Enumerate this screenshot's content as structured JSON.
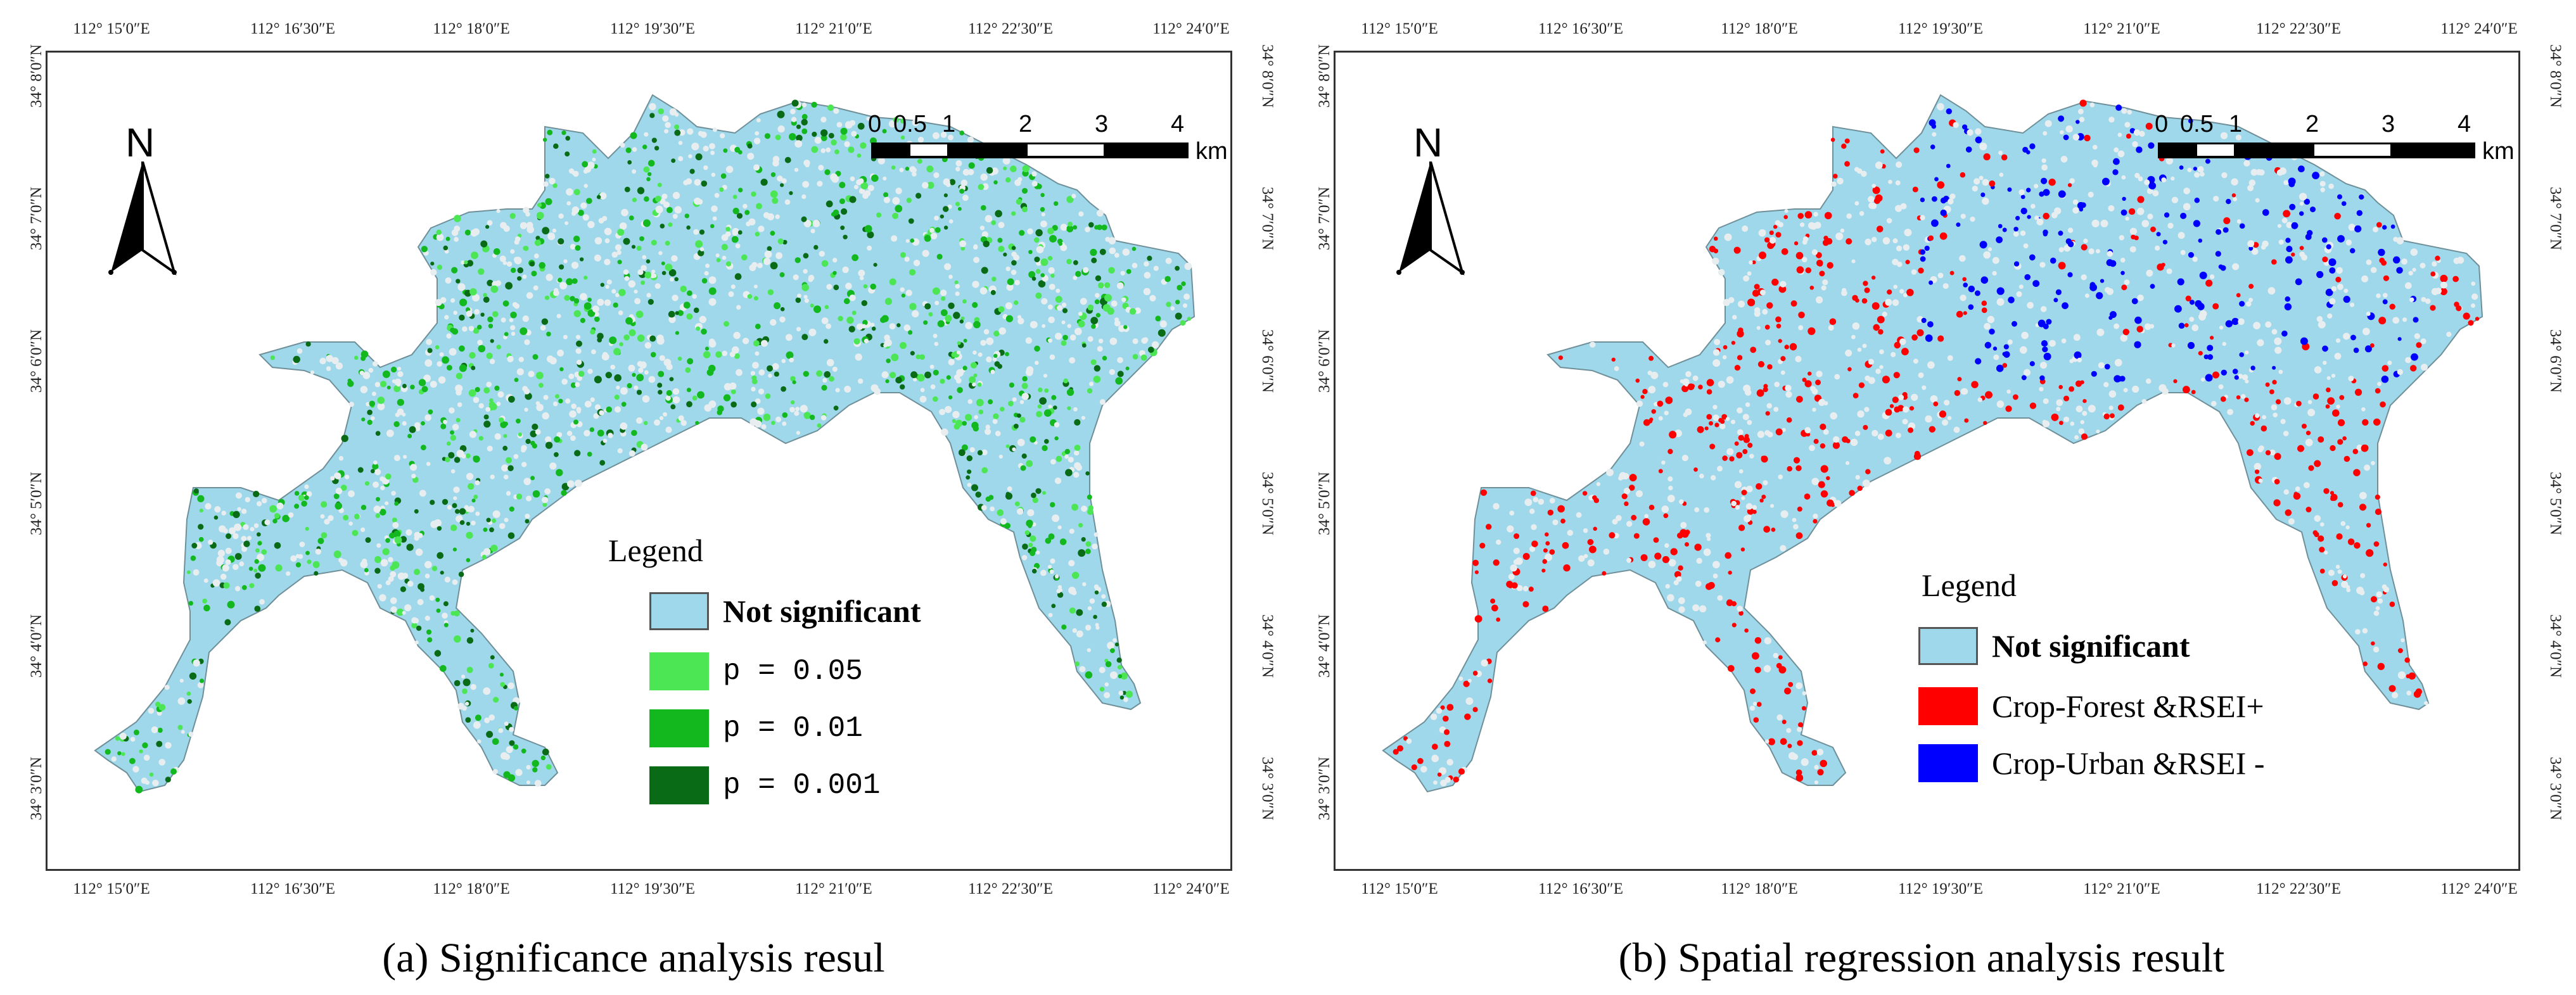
{
  "colors": {
    "not_significant": "#9ED8EA",
    "p005": "#4CE655",
    "p001": "#12B81E",
    "p0001": "#0A6B16",
    "crop_forest": "#FF0000",
    "crop_urban": "#0000FF"
  },
  "axes": {
    "lon_ticks": [
      "112° 15′0″E",
      "112° 16′30″E",
      "112° 18′0″E",
      "112° 19′30″E",
      "112° 21′0″E",
      "112° 22′30″E",
      "112° 24′0″E"
    ],
    "lat_ticks": [
      "34° 8′0″N",
      "34° 7′0″N",
      "34° 6′0″N",
      "34° 5′0″N",
      "34° 4′0″N",
      "34° 3′0″N"
    ]
  },
  "north_arrow": {
    "label": "N",
    "icon": "north-arrow-icon"
  },
  "scale_bar": {
    "ticks": [
      "0",
      "0.5",
      "1",
      "2",
      "3",
      "4"
    ],
    "unit": "km"
  },
  "panel_a": {
    "caption": "(a)  Significance analysis resul",
    "legend": {
      "title": "Legend",
      "items": [
        {
          "label": "Not significant",
          "color_key": "not_significant"
        },
        {
          "label": "p = 0.05",
          "color_key": "p005"
        },
        {
          "label": "p = 0.01",
          "color_key": "p001"
        },
        {
          "label": "p = 0.001",
          "color_key": "p0001"
        }
      ]
    }
  },
  "panel_b": {
    "caption": "(b)  Spatial regression analysis result",
    "legend": {
      "title": "Legend",
      "items": [
        {
          "label": "Not significant",
          "color_key": "not_significant"
        },
        {
          "label": "Crop-Forest &RSEI+",
          "color_key": "crop_forest"
        },
        {
          "label": "Crop-Urban &RSEI -",
          "color_key": "crop_urban"
        }
      ]
    }
  }
}
